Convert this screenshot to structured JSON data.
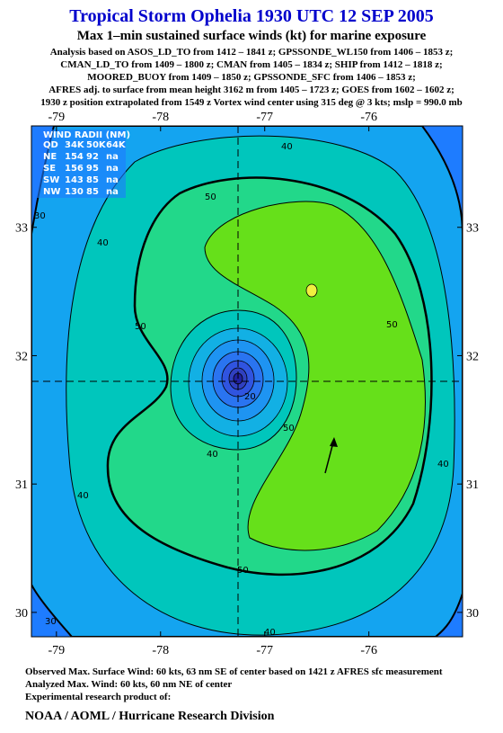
{
  "header": {
    "title": "Tropical Storm Ophelia 1930 UTC 12 SEP 2005",
    "subtitle": "Max 1–min sustained surface winds (kt) for marine exposure",
    "analysis_lines": [
      "Analysis based on  ASOS_LD_TO from 1412 – 1841 z;  GPSSONDE_WL150 from 1406 – 1853 z;",
      "CMAN_LD_TO from 1409 – 1800 z;  CMAN from 1405 – 1834 z;  SHIP from 1412 – 1818 z;",
      "MOORED_BUOY from 1409 – 1850 z;  GPSSONDE_SFC from 1406 – 1853 z;",
      "AFRES adj. to surface from mean height 3162 m from 1405 – 1723 z;  GOES from 1602 – 1602 z;",
      "1930 z position extrapolated from 1549 z Vortex wind center using 315 deg @ 3 kts; mslp = 990.0 mb"
    ]
  },
  "map": {
    "xlim": [
      -79.24,
      -75.1
    ],
    "ylim": [
      29.81,
      33.79
    ],
    "xticks": [
      -79,
      -78,
      -77,
      -76
    ],
    "yticks": [
      30,
      31,
      32,
      33
    ],
    "wind_radii": {
      "title": "WIND RADII (NM)",
      "columns": [
        "QD",
        "34K",
        "50K",
        "64K"
      ],
      "rows": [
        [
          "NE",
          154,
          92,
          "na"
        ],
        [
          "SE",
          156,
          95,
          "na"
        ],
        [
          "SW",
          143,
          85,
          "na"
        ],
        [
          "NW",
          130,
          85,
          "na"
        ]
      ]
    },
    "contour_labels": [
      40,
      50,
      40,
      30,
      50,
      50,
      50,
      40,
      50,
      40,
      40,
      30,
      40,
      20
    ]
  },
  "footer": {
    "lines": [
      "Observed Max. Surface Wind: 60 kts, 63 nm SE of center based on 1421 z AFRES sfc measurement",
      "Analyzed Max. Wind: 60 kts, 60 nm NE of center",
      "Experimental research product of:"
    ],
    "org": "NOAA / AOML / Hurricane Research Division"
  }
}
